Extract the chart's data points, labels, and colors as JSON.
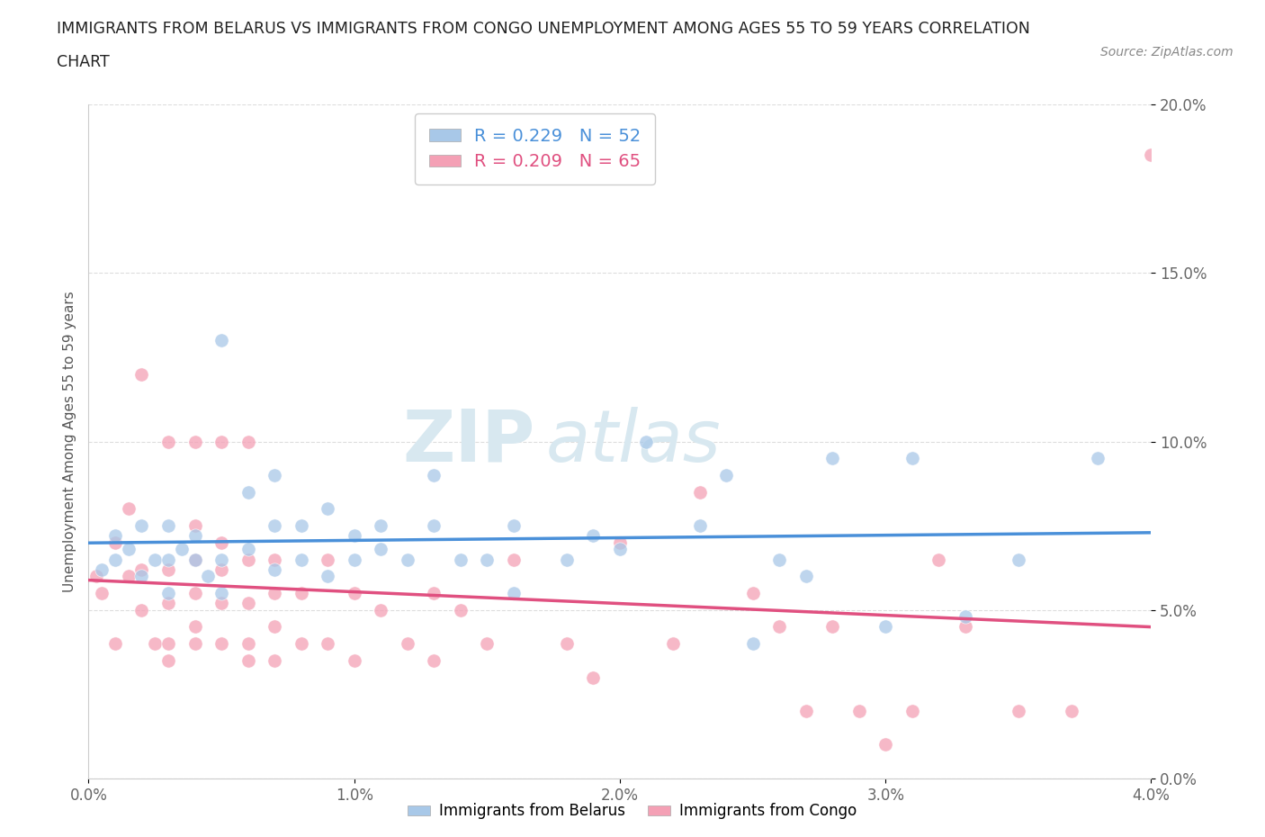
{
  "title_line1": "IMMIGRANTS FROM BELARUS VS IMMIGRANTS FROM CONGO UNEMPLOYMENT AMONG AGES 55 TO 59 YEARS CORRELATION",
  "title_line2": "CHART",
  "source_text": "Source: ZipAtlas.com",
  "ylabel": "Unemployment Among Ages 55 to 59 years",
  "xlim": [
    0.0,
    0.04
  ],
  "ylim": [
    0.0,
    0.2
  ],
  "xticks": [
    0.0,
    0.01,
    0.02,
    0.03,
    0.04
  ],
  "yticks": [
    0.0,
    0.05,
    0.1,
    0.15,
    0.2
  ],
  "xtick_labels": [
    "0.0%",
    "1.0%",
    "2.0%",
    "3.0%",
    "4.0%"
  ],
  "ytick_labels": [
    "0.0%",
    "5.0%",
    "10.0%",
    "15.0%",
    "20.0%"
  ],
  "belarus_color": "#a8c8e8",
  "congo_color": "#f4a0b5",
  "belarus_line_color": "#4a90d9",
  "congo_line_color": "#e05080",
  "belarus_label": "Immigrants from Belarus",
  "congo_label": "Immigrants from Congo",
  "belarus_R": 0.229,
  "belarus_N": 52,
  "congo_R": 0.209,
  "congo_N": 65,
  "belarus_x": [
    0.0005,
    0.001,
    0.001,
    0.0015,
    0.002,
    0.002,
    0.0025,
    0.003,
    0.003,
    0.003,
    0.0035,
    0.004,
    0.004,
    0.0045,
    0.005,
    0.005,
    0.005,
    0.006,
    0.006,
    0.007,
    0.007,
    0.007,
    0.008,
    0.008,
    0.009,
    0.009,
    0.01,
    0.01,
    0.011,
    0.011,
    0.012,
    0.013,
    0.013,
    0.014,
    0.015,
    0.016,
    0.016,
    0.018,
    0.019,
    0.02,
    0.021,
    0.023,
    0.024,
    0.025,
    0.026,
    0.027,
    0.028,
    0.03,
    0.031,
    0.033,
    0.035,
    0.038
  ],
  "belarus_y": [
    0.062,
    0.065,
    0.072,
    0.068,
    0.06,
    0.075,
    0.065,
    0.055,
    0.065,
    0.075,
    0.068,
    0.065,
    0.072,
    0.06,
    0.065,
    0.055,
    0.13,
    0.068,
    0.085,
    0.062,
    0.075,
    0.09,
    0.065,
    0.075,
    0.06,
    0.08,
    0.065,
    0.072,
    0.068,
    0.075,
    0.065,
    0.09,
    0.075,
    0.065,
    0.065,
    0.055,
    0.075,
    0.065,
    0.072,
    0.068,
    0.1,
    0.075,
    0.09,
    0.04,
    0.065,
    0.06,
    0.095,
    0.045,
    0.095,
    0.048,
    0.065,
    0.095
  ],
  "congo_x": [
    0.0003,
    0.0005,
    0.001,
    0.001,
    0.0015,
    0.0015,
    0.002,
    0.002,
    0.002,
    0.0025,
    0.003,
    0.003,
    0.003,
    0.003,
    0.003,
    0.004,
    0.004,
    0.004,
    0.004,
    0.004,
    0.004,
    0.005,
    0.005,
    0.005,
    0.005,
    0.005,
    0.006,
    0.006,
    0.006,
    0.006,
    0.006,
    0.007,
    0.007,
    0.007,
    0.007,
    0.008,
    0.008,
    0.009,
    0.009,
    0.01,
    0.01,
    0.011,
    0.012,
    0.013,
    0.013,
    0.014,
    0.015,
    0.016,
    0.018,
    0.019,
    0.02,
    0.022,
    0.023,
    0.025,
    0.026,
    0.027,
    0.028,
    0.029,
    0.03,
    0.031,
    0.032,
    0.033,
    0.035,
    0.037,
    0.04
  ],
  "congo_y": [
    0.06,
    0.055,
    0.04,
    0.07,
    0.06,
    0.08,
    0.05,
    0.062,
    0.12,
    0.04,
    0.035,
    0.04,
    0.052,
    0.062,
    0.1,
    0.04,
    0.045,
    0.055,
    0.065,
    0.075,
    0.1,
    0.04,
    0.052,
    0.062,
    0.07,
    0.1,
    0.035,
    0.04,
    0.052,
    0.065,
    0.1,
    0.035,
    0.045,
    0.055,
    0.065,
    0.04,
    0.055,
    0.04,
    0.065,
    0.035,
    0.055,
    0.05,
    0.04,
    0.035,
    0.055,
    0.05,
    0.04,
    0.065,
    0.04,
    0.03,
    0.07,
    0.04,
    0.085,
    0.055,
    0.045,
    0.02,
    0.045,
    0.02,
    0.01,
    0.02,
    0.065,
    0.045,
    0.02,
    0.02,
    0.185
  ],
  "background_color": "#ffffff",
  "watermark_color": "#d8e8f0",
  "grid_color": "#dddddd",
  "tick_color": "#666666",
  "spine_color": "#cccccc"
}
